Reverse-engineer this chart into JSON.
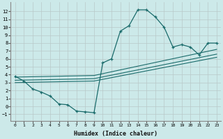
{
  "xlabel": "Humidex (Indice chaleur)",
  "bg_color": "#cce9e9",
  "line_color": "#1a6b6b",
  "xlim": [
    -0.5,
    23.5
  ],
  "ylim": [
    -1.8,
    13.2
  ],
  "xticks": [
    0,
    1,
    2,
    3,
    4,
    5,
    6,
    7,
    8,
    9,
    10,
    11,
    12,
    13,
    14,
    15,
    16,
    17,
    18,
    19,
    20,
    21,
    22,
    23
  ],
  "yticks": [
    -1,
    0,
    1,
    2,
    3,
    4,
    5,
    6,
    7,
    8,
    9,
    10,
    11,
    12
  ],
  "curve1_x": [
    0,
    1,
    2,
    3,
    4,
    5,
    6,
    7,
    8,
    9,
    10,
    11,
    12,
    13,
    14,
    15,
    16,
    17,
    18,
    19,
    20,
    21,
    22,
    23
  ],
  "curve1_y": [
    3.8,
    3.2,
    2.2,
    1.8,
    1.3,
    0.3,
    0.2,
    -0.6,
    -0.7,
    -0.8,
    5.5,
    6.0,
    9.5,
    10.2,
    12.2,
    12.2,
    11.3,
    10.0,
    7.5,
    7.8,
    7.5,
    6.5,
    8.0,
    8.0
  ],
  "line1_x": [
    0,
    9,
    23
  ],
  "line1_y": [
    3.0,
    3.2,
    6.2
  ],
  "line2_x": [
    0,
    9,
    23
  ],
  "line2_y": [
    3.3,
    3.5,
    6.6
  ],
  "line3_x": [
    0,
    9,
    23
  ],
  "line3_y": [
    3.7,
    3.9,
    7.2
  ]
}
